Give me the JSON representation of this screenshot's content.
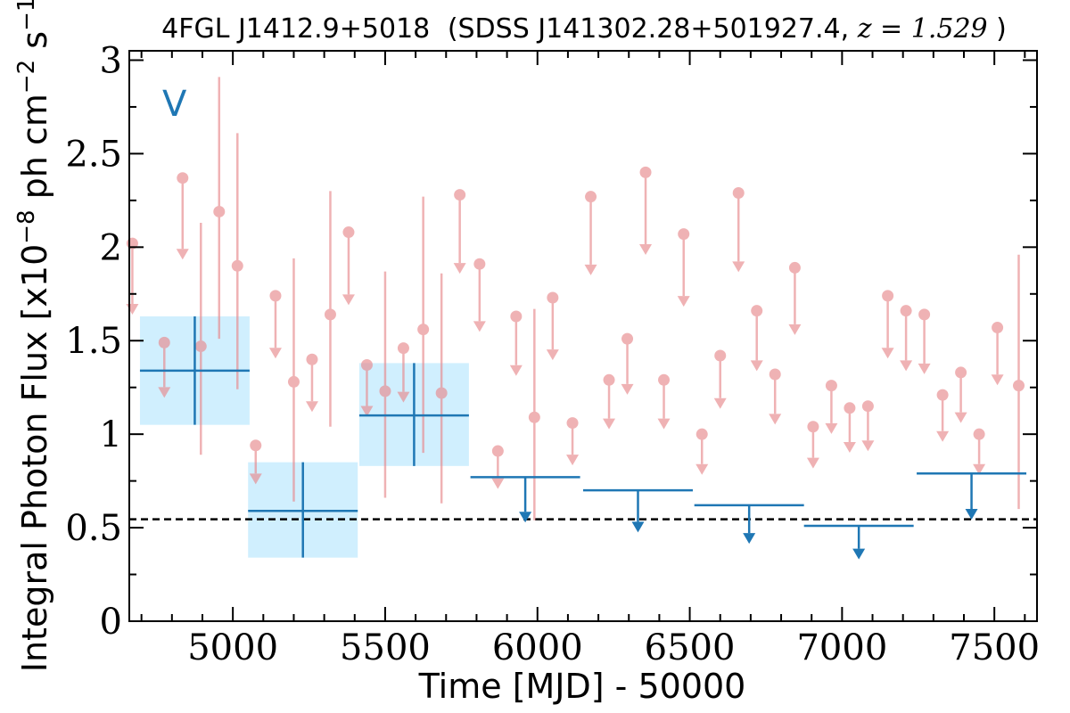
{
  "chart_data": {
    "type": "scatter",
    "title": {
      "source": "4FGL J1412.9+5018",
      "counterpart": "(SDSS J141302.28+501927.4, ",
      "z_label": "z = 1.529",
      "close": ")"
    },
    "xlabel": "Time [MJD] - 50000",
    "ylabel": "Integral Photon Flux [x10",
    "ylabel_exp": "−8",
    "ylabel_mid": " ph cm",
    "ylabel_exp2": "−2",
    "ylabel_mid2": " s",
    "ylabel_exp3": "−1",
    "ylabel_close": "]",
    "band_label": "V",
    "xlim": [
      4660,
      7640
    ],
    "ylim": [
      0,
      3.05
    ],
    "x_ticks": [
      5000,
      5500,
      6000,
      6500,
      7000,
      7500
    ],
    "x_tick_labels": [
      "5000",
      "5500",
      "6000",
      "6500",
      "7000",
      "7500"
    ],
    "y_ticks": [
      0,
      0.5,
      1,
      1.5,
      2,
      2.5,
      3
    ],
    "y_tick_labels": [
      "0",
      "0.5",
      "1",
      "1.5",
      "2",
      "2.5",
      "3"
    ],
    "reference_line": {
      "y": 0.545,
      "style": "dashed",
      "color": "#000000"
    },
    "colors": {
      "detail": "#e8898d",
      "binned": "#1f77b4",
      "box_fill": "#cdeefe"
    },
    "detail_points": [
      {
        "x": 4670,
        "y": 2.02,
        "upper_limit": true
      },
      {
        "x": 4775,
        "y": 1.49,
        "upper_limit": true
      },
      {
        "x": 4835,
        "y": 2.37,
        "upper_limit": true
      },
      {
        "x": 4895,
        "y": 1.47,
        "yerr": [
          0.58,
          0.66
        ]
      },
      {
        "x": 4955,
        "y": 2.19,
        "yerr": [
          0.68,
          0.72
        ]
      },
      {
        "x": 5015,
        "y": 1.9,
        "yerr": [
          0.66,
          0.71
        ]
      },
      {
        "x": 5075,
        "y": 0.94,
        "upper_limit": true
      },
      {
        "x": 5140,
        "y": 1.74,
        "upper_limit": true
      },
      {
        "x": 5200,
        "y": 1.28,
        "yerr": [
          0.64,
          0.66
        ]
      },
      {
        "x": 5260,
        "y": 1.4,
        "upper_limit": true
      },
      {
        "x": 5320,
        "y": 1.64,
        "yerr": [
          0.6,
          0.66
        ]
      },
      {
        "x": 5380,
        "y": 2.08,
        "upper_limit": true
      },
      {
        "x": 5440,
        "y": 1.37,
        "upper_limit": true
      },
      {
        "x": 5500,
        "y": 1.23,
        "yerr": [
          0.57,
          0.64
        ]
      },
      {
        "x": 5560,
        "y": 1.46,
        "upper_limit": true
      },
      {
        "x": 5625,
        "y": 1.56,
        "yerr": [
          0.66,
          0.71
        ]
      },
      {
        "x": 5685,
        "y": 1.22,
        "yerr": [
          0.59,
          0.64
        ]
      },
      {
        "x": 5745,
        "y": 2.28,
        "upper_limit": true
      },
      {
        "x": 5810,
        "y": 1.91,
        "upper_limit": true
      },
      {
        "x": 5870,
        "y": 0.91,
        "upper_limit": true
      },
      {
        "x": 5930,
        "y": 1.63,
        "upper_limit": true
      },
      {
        "x": 5990,
        "y": 1.09,
        "yerr": [
          0.55,
          0.58
        ]
      },
      {
        "x": 6050,
        "y": 1.73,
        "upper_limit": true
      },
      {
        "x": 6115,
        "y": 1.06,
        "upper_limit": true
      },
      {
        "x": 6175,
        "y": 2.27,
        "upper_limit": true
      },
      {
        "x": 6235,
        "y": 1.29,
        "upper_limit": true
      },
      {
        "x": 6295,
        "y": 1.51,
        "upper_limit": true
      },
      {
        "x": 6355,
        "y": 2.4,
        "upper_limit": true
      },
      {
        "x": 6415,
        "y": 1.29,
        "upper_limit": true
      },
      {
        "x": 6480,
        "y": 2.07,
        "upper_limit": true
      },
      {
        "x": 6540,
        "y": 1.0,
        "upper_limit": true
      },
      {
        "x": 6600,
        "y": 1.42,
        "upper_limit": true
      },
      {
        "x": 6660,
        "y": 2.29,
        "upper_limit": true
      },
      {
        "x": 6720,
        "y": 1.66,
        "upper_limit": true
      },
      {
        "x": 6780,
        "y": 1.32,
        "upper_limit": true
      },
      {
        "x": 6845,
        "y": 1.89,
        "upper_limit": true
      },
      {
        "x": 6905,
        "y": 1.04,
        "upper_limit": true
      },
      {
        "x": 6965,
        "y": 1.26,
        "upper_limit": true
      },
      {
        "x": 7025,
        "y": 1.14,
        "upper_limit": true
      },
      {
        "x": 7085,
        "y": 1.15,
        "upper_limit": true
      },
      {
        "x": 7150,
        "y": 1.74,
        "upper_limit": true
      },
      {
        "x": 7210,
        "y": 1.66,
        "upper_limit": true
      },
      {
        "x": 7270,
        "y": 1.64,
        "upper_limit": true
      },
      {
        "x": 7330,
        "y": 1.21,
        "upper_limit": true
      },
      {
        "x": 7390,
        "y": 1.33,
        "upper_limit": true
      },
      {
        "x": 7450,
        "y": 1.0,
        "upper_limit": true
      },
      {
        "x": 7510,
        "y": 1.57,
        "upper_limit": true
      },
      {
        "x": 7580,
        "y": 1.26,
        "yerr": [
          0.66,
          0.7
        ]
      }
    ],
    "binned_points": [
      {
        "x": 4875,
        "xerr": 180,
        "y": 1.34,
        "yerr": [
          0.29,
          0.29
        ]
      },
      {
        "x": 5230,
        "xerr": 180,
        "y": 0.59,
        "yerr": [
          0.25,
          0.26
        ]
      },
      {
        "x": 5595,
        "xerr": 180,
        "y": 1.1,
        "yerr": [
          0.27,
          0.28
        ]
      },
      {
        "x": 5960,
        "xerr": 180,
        "y": 0.77,
        "upper_limit": true
      },
      {
        "x": 6330,
        "xerr": 180,
        "y": 0.7,
        "upper_limit": true
      },
      {
        "x": 6695,
        "xerr": 180,
        "y": 0.62,
        "upper_limit": true
      },
      {
        "x": 7055,
        "xerr": 180,
        "y": 0.51,
        "upper_limit": true
      },
      {
        "x": 7425,
        "xerr": 180,
        "y": 0.79,
        "upper_limit": true
      }
    ]
  }
}
